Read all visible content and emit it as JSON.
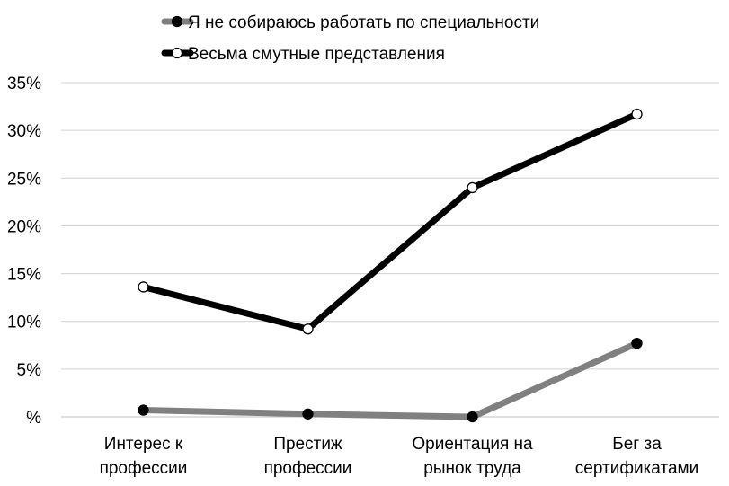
{
  "chart_data": {
    "type": "line",
    "categories": [
      [
        "Интерес к",
        "профессии"
      ],
      [
        "Престиж",
        "профессии"
      ],
      [
        "Ориентация на",
        "рынок труда"
      ],
      [
        "Бег за",
        "сертификатами"
      ]
    ],
    "yticks": [
      "35%",
      "30%",
      "25%",
      "20%",
      "15%",
      "10%",
      "5%",
      "%"
    ],
    "ylim": [
      0,
      35
    ],
    "grid": true,
    "legend_position": "top",
    "series": [
      {
        "name": "Я не собираюсь работать по специальности",
        "values": [
          0.7,
          0.3,
          0.0,
          7.7
        ],
        "line_color": "#808080",
        "marker_fill": "#000000"
      },
      {
        "name": "Весьма смутные представления",
        "values": [
          13.6,
          9.2,
          24.0,
          31.7
        ],
        "line_color": "#000000",
        "marker_fill": "#ffffff"
      }
    ]
  }
}
